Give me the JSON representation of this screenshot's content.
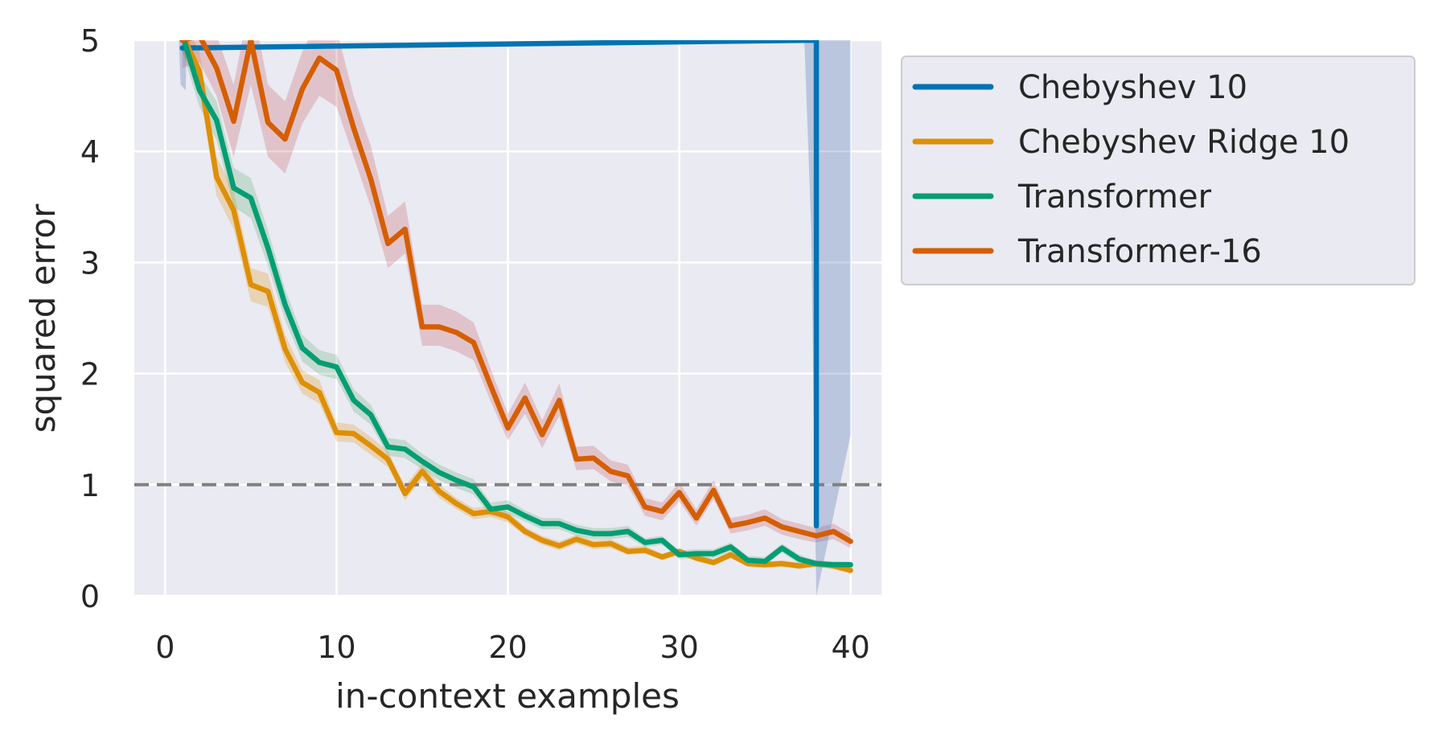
{
  "chart_data": {
    "type": "line",
    "title": "",
    "xlabel": "in-context examples",
    "ylabel": "squared error",
    "xlim": [
      -1.8,
      41.8
    ],
    "ylim": [
      0,
      5
    ],
    "xticks": [
      0,
      10,
      20,
      30,
      40
    ],
    "yticks": [
      0,
      1,
      2,
      3,
      4,
      5
    ],
    "grid": true,
    "legend_position": "outside-right-top",
    "reference_line": {
      "y": 1,
      "style": "dashed",
      "color": "#808080"
    },
    "series": [
      {
        "name": "Chebyshev 10",
        "color": "#0173b2",
        "points": [
          [
            1,
            4.93
          ],
          [
            38,
            5.0
          ],
          [
            38,
            0.63
          ]
        ],
        "band": []
      },
      {
        "name": "Chebyshev Ridge 10",
        "color": "#de8f05",
        "points": [
          [
            1,
            5.05
          ],
          [
            2,
            4.72
          ],
          [
            3,
            3.77
          ],
          [
            4,
            3.47
          ],
          [
            5,
            2.8
          ],
          [
            6,
            2.74
          ],
          [
            7,
            2.22
          ],
          [
            8,
            1.92
          ],
          [
            9,
            1.83
          ],
          [
            10,
            1.47
          ],
          [
            11,
            1.46
          ],
          [
            12,
            1.35
          ],
          [
            13,
            1.23
          ],
          [
            14,
            0.92
          ],
          [
            15,
            1.12
          ],
          [
            16,
            0.94
          ],
          [
            17,
            0.83
          ],
          [
            18,
            0.74
          ],
          [
            19,
            0.76
          ],
          [
            20,
            0.71
          ],
          [
            21,
            0.58
          ],
          [
            22,
            0.5
          ],
          [
            23,
            0.45
          ],
          [
            24,
            0.51
          ],
          [
            25,
            0.46
          ],
          [
            26,
            0.47
          ],
          [
            27,
            0.4
          ],
          [
            28,
            0.41
          ],
          [
            29,
            0.35
          ],
          [
            30,
            0.4
          ],
          [
            31,
            0.34
          ],
          [
            32,
            0.3
          ],
          [
            33,
            0.37
          ],
          [
            34,
            0.29
          ],
          [
            35,
            0.28
          ],
          [
            36,
            0.29
          ],
          [
            37,
            0.27
          ],
          [
            38,
            0.29
          ],
          [
            39,
            0.27
          ],
          [
            40,
            0.23
          ]
        ],
        "band": [
          [
            1,
            4.9,
            5.2
          ],
          [
            2,
            4.55,
            4.9
          ],
          [
            3,
            3.6,
            3.95
          ],
          [
            4,
            3.3,
            3.65
          ],
          [
            5,
            2.65,
            2.95
          ],
          [
            6,
            2.6,
            2.9
          ],
          [
            7,
            2.1,
            2.35
          ],
          [
            8,
            1.82,
            2.03
          ],
          [
            9,
            1.73,
            1.94
          ],
          [
            10,
            1.39,
            1.56
          ],
          [
            11,
            1.38,
            1.54
          ],
          [
            12,
            1.27,
            1.43
          ],
          [
            13,
            1.16,
            1.3
          ],
          [
            14,
            0.86,
            0.99
          ],
          [
            15,
            1.05,
            1.19
          ],
          [
            16,
            0.88,
            1.0
          ],
          [
            17,
            0.78,
            0.88
          ],
          [
            18,
            0.69,
            0.79
          ],
          [
            19,
            0.71,
            0.81
          ],
          [
            20,
            0.66,
            0.76
          ],
          [
            21,
            0.54,
            0.62
          ],
          [
            22,
            0.46,
            0.54
          ],
          [
            23,
            0.41,
            0.49
          ],
          [
            24,
            0.47,
            0.55
          ],
          [
            25,
            0.42,
            0.5
          ],
          [
            26,
            0.43,
            0.51
          ],
          [
            27,
            0.37,
            0.44
          ],
          [
            28,
            0.38,
            0.45
          ],
          [
            29,
            0.32,
            0.38
          ],
          [
            30,
            0.37,
            0.43
          ],
          [
            31,
            0.31,
            0.37
          ],
          [
            32,
            0.27,
            0.33
          ],
          [
            33,
            0.34,
            0.4
          ],
          [
            34,
            0.26,
            0.32
          ],
          [
            35,
            0.25,
            0.31
          ],
          [
            36,
            0.26,
            0.32
          ],
          [
            37,
            0.24,
            0.3
          ],
          [
            38,
            0.26,
            0.32
          ],
          [
            39,
            0.24,
            0.3
          ],
          [
            40,
            0.2,
            0.26
          ]
        ]
      },
      {
        "name": "Transformer",
        "color": "#029e73",
        "points": [
          [
            1,
            5.05
          ],
          [
            2,
            4.55
          ],
          [
            3,
            4.28
          ],
          [
            4,
            3.67
          ],
          [
            5,
            3.58
          ],
          [
            6,
            3.13
          ],
          [
            7,
            2.62
          ],
          [
            8,
            2.23
          ],
          [
            9,
            2.1
          ],
          [
            10,
            2.06
          ],
          [
            11,
            1.76
          ],
          [
            12,
            1.63
          ],
          [
            13,
            1.34
          ],
          [
            14,
            1.32
          ],
          [
            15,
            1.21
          ],
          [
            16,
            1.11
          ],
          [
            17,
            1.04
          ],
          [
            18,
            0.98
          ],
          [
            19,
            0.78
          ],
          [
            20,
            0.8
          ],
          [
            21,
            0.72
          ],
          [
            22,
            0.65
          ],
          [
            23,
            0.65
          ],
          [
            24,
            0.59
          ],
          [
            25,
            0.56
          ],
          [
            26,
            0.56
          ],
          [
            27,
            0.58
          ],
          [
            28,
            0.48
          ],
          [
            29,
            0.5
          ],
          [
            30,
            0.37
          ],
          [
            31,
            0.38
          ],
          [
            32,
            0.38
          ],
          [
            33,
            0.44
          ],
          [
            34,
            0.32
          ],
          [
            35,
            0.31
          ],
          [
            36,
            0.43
          ],
          [
            37,
            0.33
          ],
          [
            38,
            0.29
          ],
          [
            39,
            0.28
          ],
          [
            40,
            0.28
          ]
        ],
        "band": [
          [
            1,
            4.9,
            5.2
          ],
          [
            2,
            4.4,
            4.7
          ],
          [
            3,
            4.1,
            4.45
          ],
          [
            4,
            3.5,
            3.85
          ],
          [
            5,
            3.4,
            3.76
          ],
          [
            6,
            2.97,
            3.29
          ],
          [
            7,
            2.48,
            2.76
          ],
          [
            8,
            2.11,
            2.35
          ],
          [
            9,
            1.99,
            2.21
          ],
          [
            10,
            1.95,
            2.17
          ],
          [
            11,
            1.66,
            1.86
          ],
          [
            12,
            1.54,
            1.72
          ],
          [
            13,
            1.26,
            1.42
          ],
          [
            14,
            1.24,
            1.4
          ],
          [
            15,
            1.14,
            1.28
          ],
          [
            16,
            1.04,
            1.18
          ],
          [
            17,
            0.97,
            1.11
          ],
          [
            18,
            0.91,
            1.05
          ],
          [
            19,
            0.72,
            0.84
          ],
          [
            20,
            0.74,
            0.86
          ],
          [
            21,
            0.67,
            0.77
          ],
          [
            22,
            0.6,
            0.7
          ],
          [
            23,
            0.6,
            0.7
          ],
          [
            24,
            0.54,
            0.64
          ],
          [
            25,
            0.51,
            0.61
          ],
          [
            26,
            0.51,
            0.61
          ],
          [
            27,
            0.53,
            0.63
          ],
          [
            28,
            0.44,
            0.52
          ],
          [
            29,
            0.46,
            0.54
          ],
          [
            30,
            0.33,
            0.41
          ],
          [
            31,
            0.34,
            0.42
          ],
          [
            32,
            0.34,
            0.42
          ],
          [
            33,
            0.4,
            0.48
          ],
          [
            34,
            0.28,
            0.36
          ],
          [
            35,
            0.27,
            0.35
          ],
          [
            36,
            0.39,
            0.47
          ],
          [
            37,
            0.29,
            0.37
          ],
          [
            38,
            0.26,
            0.32
          ],
          [
            39,
            0.25,
            0.31
          ],
          [
            40,
            0.25,
            0.31
          ]
        ]
      },
      {
        "name": "Transformer-16",
        "color": "#d55e00",
        "points": [
          [
            1,
            5.0
          ],
          [
            2,
            5.04
          ],
          [
            3,
            4.75
          ],
          [
            4,
            4.27
          ],
          [
            5,
            5.0
          ],
          [
            6,
            4.26
          ],
          [
            7,
            4.11
          ],
          [
            8,
            4.56
          ],
          [
            9,
            4.84
          ],
          [
            10,
            4.73
          ],
          [
            11,
            4.21
          ],
          [
            12,
            3.75
          ],
          [
            13,
            3.17
          ],
          [
            14,
            3.3
          ],
          [
            15,
            2.42
          ],
          [
            16,
            2.42
          ],
          [
            17,
            2.37
          ],
          [
            18,
            2.28
          ],
          [
            19,
            1.89
          ],
          [
            20,
            1.51
          ],
          [
            21,
            1.78
          ],
          [
            22,
            1.45
          ],
          [
            23,
            1.76
          ],
          [
            24,
            1.23
          ],
          [
            25,
            1.24
          ],
          [
            26,
            1.12
          ],
          [
            27,
            1.08
          ],
          [
            28,
            0.8
          ],
          [
            29,
            0.76
          ],
          [
            30,
            0.93
          ],
          [
            31,
            0.7
          ],
          [
            32,
            0.95
          ],
          [
            33,
            0.63
          ],
          [
            34,
            0.66
          ],
          [
            35,
            0.7
          ],
          [
            36,
            0.62
          ],
          [
            37,
            0.58
          ],
          [
            38,
            0.54
          ],
          [
            39,
            0.58
          ],
          [
            40,
            0.49
          ]
        ],
        "band": [
          [
            1,
            4.75,
            5.3
          ],
          [
            2,
            4.8,
            5.3
          ],
          [
            3,
            4.5,
            5.05
          ],
          [
            4,
            3.95,
            4.6
          ],
          [
            5,
            4.6,
            5.4
          ],
          [
            6,
            3.95,
            4.6
          ],
          [
            7,
            3.8,
            4.45
          ],
          [
            8,
            4.25,
            4.9
          ],
          [
            9,
            4.5,
            5.2
          ],
          [
            10,
            4.4,
            5.1
          ],
          [
            11,
            3.95,
            4.5
          ],
          [
            12,
            3.5,
            4.05
          ],
          [
            13,
            2.95,
            3.42
          ],
          [
            14,
            3.08,
            3.55
          ],
          [
            15,
            2.25,
            2.62
          ],
          [
            16,
            2.25,
            2.62
          ],
          [
            17,
            2.2,
            2.56
          ],
          [
            18,
            2.12,
            2.46
          ],
          [
            19,
            1.75,
            2.04
          ],
          [
            20,
            1.4,
            1.64
          ],
          [
            21,
            1.64,
            1.92
          ],
          [
            22,
            1.33,
            1.58
          ],
          [
            23,
            1.62,
            1.91
          ],
          [
            24,
            1.13,
            1.34
          ],
          [
            25,
            1.14,
            1.35
          ],
          [
            26,
            1.03,
            1.22
          ],
          [
            27,
            0.99,
            1.18
          ],
          [
            28,
            0.72,
            0.88
          ],
          [
            29,
            0.68,
            0.84
          ],
          [
            30,
            0.85,
            1.02
          ],
          [
            31,
            0.63,
            0.78
          ],
          [
            32,
            0.87,
            1.04
          ],
          [
            33,
            0.56,
            0.7
          ],
          [
            34,
            0.59,
            0.73
          ],
          [
            35,
            0.63,
            0.78
          ],
          [
            36,
            0.55,
            0.69
          ],
          [
            37,
            0.51,
            0.65
          ],
          [
            38,
            0.48,
            0.61
          ],
          [
            39,
            0.51,
            0.65
          ],
          [
            40,
            0.43,
            0.56
          ]
        ]
      }
    ],
    "extra_bands": [
      {
        "color": "#4c72b0",
        "polygon": [
          [
            0.8,
            5.0
          ],
          [
            1.25,
            5.0
          ],
          [
            1.2,
            4.55
          ],
          [
            0.9,
            4.6
          ]
        ]
      },
      {
        "color": "#4c72b0",
        "polygon": [
          [
            37.3,
            5.0
          ],
          [
            40.0,
            5.0
          ],
          [
            40.0,
            1.45
          ],
          [
            38.0,
            0.0
          ],
          [
            37.9,
            1.0
          ],
          [
            37.7,
            3.3
          ]
        ]
      }
    ]
  }
}
